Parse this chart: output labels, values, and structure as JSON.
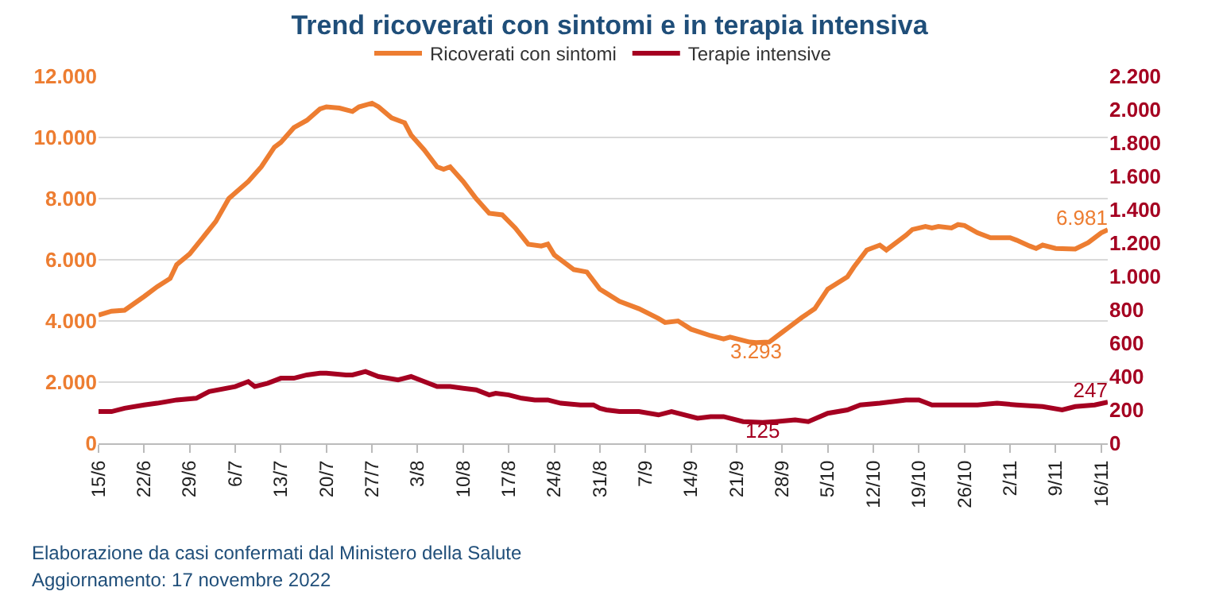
{
  "chart_data": {
    "type": "line",
    "title": "Trend ricoverati con sintomi e in terapia intensiva",
    "annotations": [
      "Elaborazione da casi confermati dal Ministero della Salute",
      "Aggiornamento: 17 novembre 2022"
    ],
    "xlim": [
      "--06-15",
      "--11-17"
    ],
    "xticks": [
      {
        "value": "--06-15",
        "label": "15/6"
      },
      {
        "value": "--06-22",
        "label": "22/6"
      },
      {
        "value": "--06-29",
        "label": "29/6"
      },
      {
        "value": "--07-06",
        "label": "6/7"
      },
      {
        "value": "--07-13",
        "label": "13/7"
      },
      {
        "value": "--07-20",
        "label": "20/7"
      },
      {
        "value": "--07-27",
        "label": "27/7"
      },
      {
        "value": "--08-03",
        "label": "3/8"
      },
      {
        "value": "--08-10",
        "label": "10/8"
      },
      {
        "value": "--08-17",
        "label": "17/8"
      },
      {
        "value": "--08-24",
        "label": "24/8"
      },
      {
        "value": "--08-31",
        "label": "31/8"
      },
      {
        "value": "--09-07",
        "label": "7/9"
      },
      {
        "value": "--09-14",
        "label": "14/9"
      },
      {
        "value": "--09-21",
        "label": "21/9"
      },
      {
        "value": "--09-28",
        "label": "28/9"
      },
      {
        "value": "--10-05",
        "label": "5/10"
      },
      {
        "value": "--10-12",
        "label": "12/10"
      },
      {
        "value": "--10-19",
        "label": "19/10"
      },
      {
        "value": "--10-26",
        "label": "26/10"
      },
      {
        "value": "--11-02",
        "label": "2/11"
      },
      {
        "value": "--11-09",
        "label": "9/11"
      },
      {
        "value": "--11-16",
        "label": "16/11"
      }
    ],
    "ylim": [
      0,
      12000
    ],
    "yticks": [
      0,
      {
        "value": 2000,
        "label": "2.000"
      },
      {
        "value": 4000,
        "label": "4.000"
      },
      {
        "value": 6000,
        "label": "6.000"
      },
      {
        "value": 8000,
        "label": "8.000"
      },
      {
        "value": 10000,
        "label": "10.000"
      },
      {
        "value": 12000,
        "label": "12.000"
      }
    ],
    "y2lim": [
      0,
      2200
    ],
    "y2ticks": [
      0,
      200,
      400,
      600,
      800,
      {
        "value": 1000,
        "label": "1.000"
      },
      {
        "value": 1200,
        "label": "1.200"
      },
      {
        "value": 1400,
        "label": "1.400"
      },
      {
        "value": 1600,
        "label": "1.600"
      },
      {
        "value": 1800,
        "label": "1.800"
      },
      {
        "value": 2000,
        "label": "2.000"
      },
      {
        "value": 2200,
        "label": "2.200"
      }
    ],
    "grid": "y",
    "legend": "top",
    "series": [
      {
        "name": "Ricoverati con sintomi",
        "color": "#ed7d31",
        "x": [
          "--06-15",
          "--06-17",
          "--06-19",
          "--06-22",
          "--06-24",
          "--06-26",
          "--06-27",
          "--06-29",
          "--07-01",
          "--07-03",
          "--07-05",
          "--07-08",
          "--07-10",
          "--07-12",
          "--07-13",
          "--07-15",
          "--07-17",
          "--07-19",
          "--07-20",
          "--07-22",
          "--07-24",
          "--07-25",
          "--07-27",
          "--07-28",
          "--07-30",
          "--08-01",
          "--08-02",
          "--08-04",
          "--08-06",
          "--08-07",
          "--08-08",
          "--08-10",
          "--08-12",
          "--08-14",
          "--08-16",
          "--08-18",
          "--08-20",
          "--08-22",
          "--08-23",
          "--08-24",
          "--08-27",
          "--08-29",
          "--08-31",
          "--09-03",
          "--09-06",
          "--09-09",
          "--09-10",
          "--09-12",
          "--09-14",
          "--09-17",
          "--09-19",
          "--09-20",
          "--09-23",
          "--09-24",
          "--09-26",
          "--09-28",
          "--09-29",
          "--10-01",
          "--10-03",
          "--10-05",
          "--10-08",
          "--10-09",
          "--10-11",
          "--10-13",
          "--10-14",
          "--10-16",
          "--10-17",
          "--10-18",
          "--10-20",
          "--10-21",
          "--10-22",
          "--10-24",
          "--10-25",
          "--10-26",
          "--10-28",
          "--10-30",
          "--11-02",
          "--11-03",
          "--11-05",
          "--11-06",
          "--11-07",
          "--11-09",
          "--11-12",
          "--11-14",
          "--11-16",
          "--11-17"
        ],
        "values": [
          4190,
          4320,
          4350,
          4800,
          5120,
          5390,
          5840,
          6190,
          6720,
          7250,
          8000,
          8560,
          9040,
          9680,
          9840,
          10320,
          10560,
          10930,
          11000,
          10960,
          10850,
          11000,
          11120,
          11000,
          10640,
          10480,
          10080,
          9600,
          9040,
          8960,
          9040,
          8560,
          8000,
          7520,
          7470,
          7040,
          6510,
          6450,
          6510,
          6160,
          5680,
          5600,
          5040,
          4640,
          4400,
          4080,
          3950,
          4000,
          3730,
          3520,
          3410,
          3470,
          3310,
          3293,
          3310,
          3630,
          3790,
          4110,
          4400,
          5040,
          5440,
          5760,
          6320,
          6480,
          6320,
          6640,
          6800,
          6990,
          7090,
          7040,
          7090,
          7040,
          7150,
          7120,
          6880,
          6720,
          6720,
          6640,
          6450,
          6370,
          6480,
          6370,
          6350,
          6560,
          6880,
          6981
        ],
        "value_labels": [
          null,
          null,
          null,
          null,
          null,
          null,
          null,
          null,
          null,
          null,
          null,
          null,
          null,
          null,
          null,
          null,
          null,
          null,
          null,
          null,
          null,
          null,
          null,
          null,
          null,
          null,
          null,
          null,
          null,
          null,
          null,
          null,
          null,
          null,
          null,
          null,
          null,
          null,
          null,
          null,
          null,
          null,
          null,
          null,
          null,
          null,
          null,
          null,
          null,
          null,
          null,
          null,
          null,
          "3.293",
          null,
          null,
          null,
          null,
          null,
          null,
          null,
          null,
          null,
          null,
          null,
          null,
          null,
          null,
          null,
          null,
          null,
          null,
          null,
          null,
          null,
          null,
          null,
          null,
          null,
          null,
          null,
          null,
          null,
          null,
          null,
          "6.981"
        ]
      },
      {
        "name": "Terapie intensive",
        "color": "#a50021",
        "axis": "y2",
        "x": [
          "--06-15",
          "--06-17",
          "--06-19",
          "--06-22",
          "--06-24",
          "--06-27",
          "--06-30",
          "--07-02",
          "--07-06",
          "--07-08",
          "--07-09",
          "--07-11",
          "--07-13",
          "--07-15",
          "--07-17",
          "--07-19",
          "--07-20",
          "--07-23",
          "--07-24",
          "--07-26",
          "--07-28",
          "--07-31",
          "--08-02",
          "--08-04",
          "--08-06",
          "--08-08",
          "--08-10",
          "--08-12",
          "--08-14",
          "--08-15",
          "--08-17",
          "--08-19",
          "--08-21",
          "--08-23",
          "--08-25",
          "--08-28",
          "--08-30",
          "--08-31",
          "--09-01",
          "--09-03",
          "--09-06",
          "--09-09",
          "--09-11",
          "--09-15",
          "--09-17",
          "--09-19",
          "--09-22",
          "--09-25",
          "--09-27",
          "--09-30",
          "--10-02",
          "--10-05",
          "--10-08",
          "--10-10",
          "--10-13",
          "--10-17",
          "--10-19",
          "--10-21",
          "--10-25",
          "--10-28",
          "--10-31",
          "--11-03",
          "--11-07",
          "--11-10",
          "--11-12",
          "--11-15",
          "--11-17"
        ],
        "values": [
          190,
          190,
          210,
          230,
          240,
          260,
          270,
          310,
          340,
          370,
          340,
          360,
          390,
          390,
          410,
          420,
          420,
          410,
          410,
          430,
          400,
          380,
          400,
          370,
          340,
          340,
          330,
          320,
          290,
          300,
          290,
          270,
          260,
          260,
          240,
          230,
          230,
          210,
          200,
          190,
          190,
          170,
          190,
          150,
          160,
          160,
          130,
          125,
          130,
          140,
          130,
          180,
          200,
          230,
          240,
          260,
          260,
          230,
          230,
          230,
          240,
          230,
          220,
          200,
          220,
          230,
          247
        ],
        "value_labels": [
          null,
          null,
          null,
          null,
          null,
          null,
          null,
          null,
          null,
          null,
          null,
          null,
          null,
          null,
          null,
          null,
          null,
          null,
          null,
          null,
          null,
          null,
          null,
          null,
          null,
          null,
          null,
          null,
          null,
          null,
          null,
          null,
          null,
          null,
          null,
          null,
          null,
          null,
          null,
          null,
          null,
          null,
          null,
          null,
          null,
          null,
          null,
          "125",
          null,
          null,
          null,
          null,
          null,
          null,
          null,
          null,
          null,
          null,
          null,
          null,
          null,
          null,
          null,
          null,
          null,
          null,
          "247"
        ]
      }
    ]
  }
}
